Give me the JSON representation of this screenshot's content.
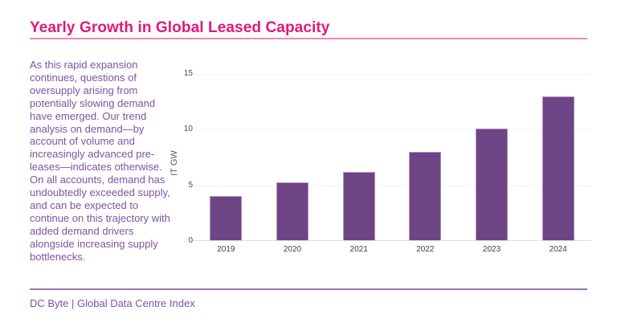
{
  "header": {
    "title": "Yearly Growth in Global Leased Capacity"
  },
  "commentary": {
    "text": "As this rapid expansion continues, questions of oversupply arising from potentially slowing demand have emerged. Our trend analysis on demand—by account of volume and increasingly advanced pre-leases—indicates otherwise. On all accounts, demand has undoubtedly exceeded supply, and can be expected to continue on this trajectory with added demand drivers alongside increasing supply bottlenecks."
  },
  "chart_data": {
    "type": "bar",
    "categories": [
      "2019",
      "2020",
      "2021",
      "2022",
      "2023",
      "2024"
    ],
    "values": [
      4,
      5.2,
      6.1,
      7.9,
      10,
      12.9
    ],
    "title": "",
    "xlabel": "",
    "ylabel": "IT GW",
    "ylim": [
      0,
      15
    ],
    "yticks": [
      0,
      5,
      10,
      15
    ],
    "grid": true,
    "legend": "none",
    "bar_color": "#6d4485"
  },
  "footer": {
    "source": "DC Byte | Global Data Centre Index"
  },
  "colors": {
    "title_text": "#e0187e",
    "title_rule": "#ef87b8",
    "body_text": "#7a55a3",
    "bar": "#6d4485",
    "gridline": "#f3f1f5",
    "axis_line": "#dfdce1",
    "footer_rule": "#9674b3"
  }
}
